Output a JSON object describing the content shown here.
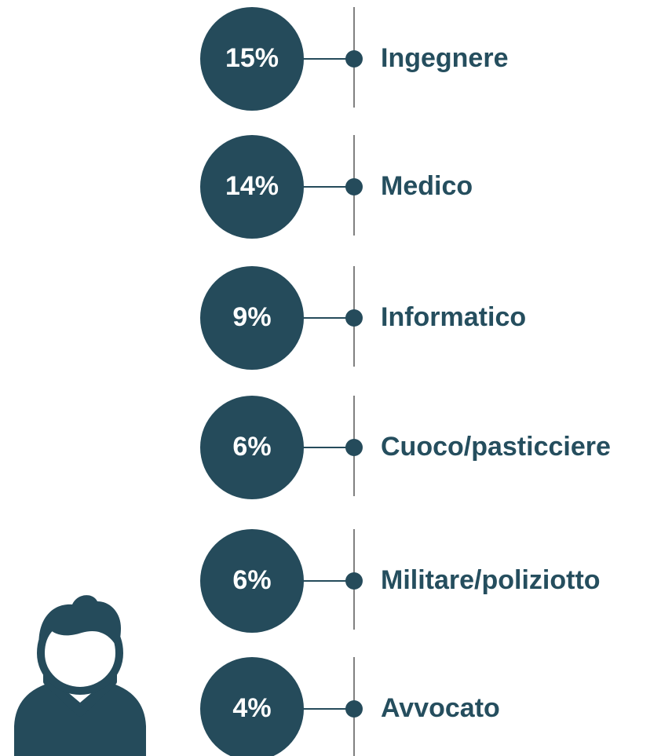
{
  "items": [
    {
      "value": "15%",
      "label": "Ingegnere"
    },
    {
      "value": "14%",
      "label": "Medico"
    },
    {
      "value": "9%",
      "label": "Informatico"
    },
    {
      "value": "6%",
      "label": "Cuoco/pasticciere"
    },
    {
      "value": "6%",
      "label": "Militare/poliziotto"
    },
    {
      "value": "4%",
      "label": "Avvocato"
    }
  ]
}
